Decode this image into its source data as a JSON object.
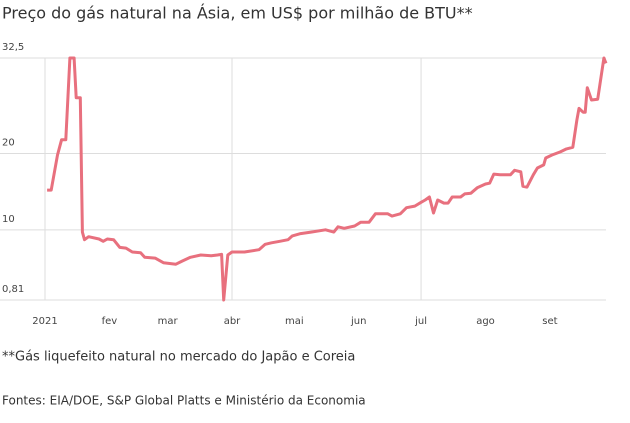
{
  "chart_data": {
    "type": "line",
    "title": "Preço do gás natural na Ásia, em US$ por milhão de BTU**",
    "note": "**Gás liquefeito natural no mercado do Japão e Coreia",
    "source": "Fontes: EIA/DOE, S&P Global Platts e Ministério da Economia",
    "x": [
      1,
      3,
      6,
      8,
      10,
      12,
      14,
      15,
      17,
      18,
      19,
      21,
      26,
      28,
      30,
      33,
      36,
      39,
      42,
      46,
      48,
      53,
      57,
      63,
      66,
      70,
      75,
      80,
      83,
      85,
      86,
      88,
      90,
      96,
      103,
      106,
      109,
      113,
      117,
      119,
      123,
      128,
      135,
      139,
      141,
      144,
      149,
      152,
      156,
      159,
      165,
      167,
      171,
      174,
      178,
      181,
      183,
      185,
      187,
      189,
      192,
      194,
      196,
      200,
      202,
      205,
      208,
      212,
      214,
      216,
      219,
      224,
      226,
      229,
      230,
      232,
      235,
      237,
      240,
      241,
      244,
      248,
      251,
      254,
      256,
      257,
      259,
      260,
      261,
      263,
      266,
      269,
      270
    ],
    "series": [
      {
        "color": "#e8707e",
        "values": [
          15.2,
          15.2,
          19.8,
          21.8,
          21.8,
          32.5,
          32.5,
          27.3,
          27.3,
          9.7,
          8.7,
          9.1,
          8.8,
          8.5,
          8.8,
          8.7,
          7.7,
          7.6,
          7.1,
          7.0,
          6.4,
          6.3,
          5.7,
          5.5,
          5.9,
          6.4,
          6.7,
          6.6,
          6.7,
          6.8,
          0.81,
          6.7,
          7.1,
          7.1,
          7.4,
          8.1,
          8.3,
          8.5,
          8.7,
          9.2,
          9.5,
          9.7,
          10.0,
          9.7,
          10.4,
          10.2,
          10.5,
          11.0,
          11.0,
          12.1,
          12.1,
          11.8,
          12.1,
          12.9,
          13.1,
          13.6,
          13.9,
          14.3,
          12.2,
          13.9,
          13.5,
          13.5,
          14.3,
          14.3,
          14.7,
          14.8,
          15.5,
          16.0,
          16.1,
          17.3,
          17.2,
          17.2,
          17.8,
          17.6,
          15.7,
          15.6,
          17.2,
          18.1,
          18.5,
          19.4,
          19.8,
          20.2,
          20.6,
          20.8,
          24.4,
          25.9,
          25.4,
          25.4,
          28.6,
          27.0,
          27.1,
          32.5,
          31.8
        ]
      }
    ],
    "xlim": [
      0,
      270
    ],
    "xticks": [
      {
        "value": 0,
        "label": "2021"
      },
      {
        "value": 31,
        "label": "fev"
      },
      {
        "value": 59,
        "label": "mar"
      },
      {
        "value": 90,
        "label": "abr"
      },
      {
        "value": 120,
        "label": "mai"
      },
      {
        "value": 151,
        "label": "jun"
      },
      {
        "value": 181,
        "label": "jul"
      },
      {
        "value": 212,
        "label": "ago"
      },
      {
        "value": 243,
        "label": "set"
      }
    ],
    "xgrid": [
      0,
      90,
      181
    ],
    "ylim": [
      0.81,
      32.5
    ],
    "yticks": [
      {
        "value": 0.81,
        "label": "0,81"
      },
      10,
      20,
      {
        "value": 32.5,
        "label": "32,5"
      }
    ],
    "grid": true
  }
}
